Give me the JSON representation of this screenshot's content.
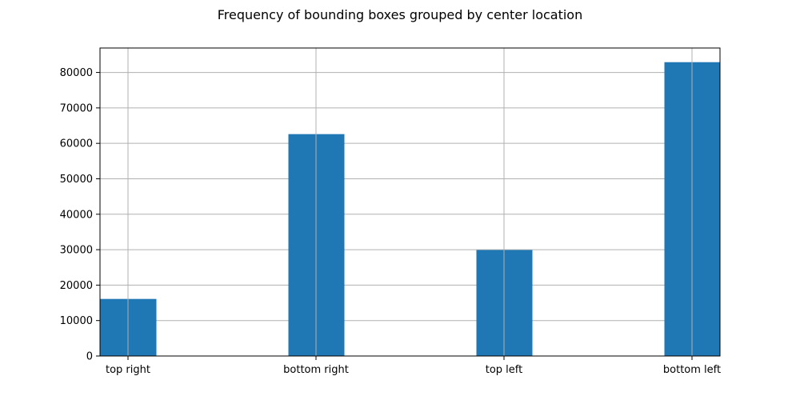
{
  "chart_data": {
    "type": "bar",
    "title": "Frequency of bounding boxes grouped by center location",
    "xlabel": "",
    "ylabel": "",
    "categories": [
      "top right",
      "bottom right",
      "top left",
      "bottom left"
    ],
    "values": [
      16100,
      62600,
      29900,
      82900
    ],
    "ylim": [
      0,
      86900
    ],
    "yticks": [
      0,
      10000,
      20000,
      30000,
      40000,
      50000,
      60000,
      70000,
      80000
    ],
    "grid": true,
    "legend": "none",
    "colors": {
      "bar": "#1f77b4",
      "grid": "#b0b0b0",
      "axis": "#000000",
      "background": "#ffffff"
    }
  }
}
